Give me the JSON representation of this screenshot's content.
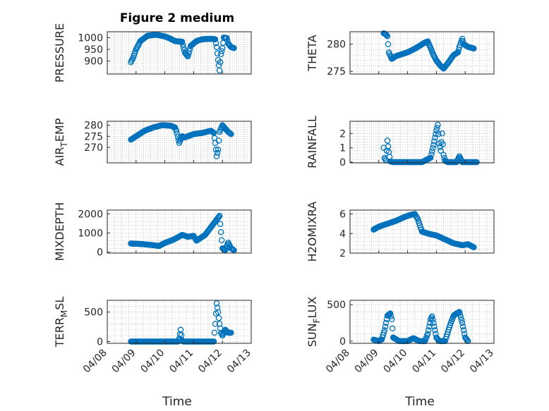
{
  "figure": {
    "title": "Figure 2 medium",
    "xlabel": "Time",
    "x_tick_labels": [
      "04/08",
      "04/09",
      "04/10",
      "04/11",
      "04/12",
      "04/13"
    ],
    "marker_color": "#0072bd",
    "background": "#ffffff"
  },
  "chart_data": [
    {
      "type": "scatter",
      "ylabel": "PRESSURE",
      "ylim": [
        845,
        1025
      ],
      "yticks": [
        900,
        950,
        1000
      ],
      "grid": true,
      "x_range_days": [
        0,
        5
      ],
      "anchors": [
        [
          0.82,
          895
        ],
        [
          0.9,
          915
        ],
        [
          1.0,
          950
        ],
        [
          1.15,
          985
        ],
        [
          1.4,
          1008
        ],
        [
          1.7,
          1012
        ],
        [
          2.0,
          1005
        ],
        [
          2.2,
          995
        ],
        [
          2.35,
          985
        ],
        [
          2.6,
          982
        ],
        [
          2.7,
          935
        ],
        [
          2.8,
          920
        ],
        [
          2.9,
          965
        ],
        [
          3.1,
          985
        ],
        [
          3.3,
          993
        ],
        [
          3.6,
          995
        ],
        [
          3.75,
          993
        ],
        [
          3.8,
          960
        ],
        [
          3.85,
          905
        ],
        [
          3.9,
          860
        ],
        [
          3.95,
          930
        ],
        [
          4.0,
          955
        ],
        [
          4.05,
          1000
        ],
        [
          4.15,
          998
        ],
        [
          4.2,
          975
        ],
        [
          4.3,
          960
        ],
        [
          4.4,
          955
        ]
      ]
    },
    {
      "type": "scatter",
      "ylabel": "THETA",
      "ylim": [
        274.5,
        282.3
      ],
      "yticks": [
        275,
        280
      ],
      "grid": true,
      "x_range_days": [
        0,
        5
      ],
      "anchors": [
        [
          1.17,
          282
        ],
        [
          1.25,
          281.8
        ],
        [
          1.3,
          281.5
        ],
        [
          1.35,
          278.5
        ],
        [
          1.45,
          277.3
        ],
        [
          1.6,
          277.8
        ],
        [
          2.0,
          278.5
        ],
        [
          2.3,
          279.3
        ],
        [
          2.6,
          280.3
        ],
        [
          2.7,
          280.5
        ],
        [
          2.8,
          279.3
        ],
        [
          2.9,
          278
        ],
        [
          3.0,
          277
        ],
        [
          3.15,
          276
        ],
        [
          3.25,
          275.5
        ],
        [
          3.4,
          276.5
        ],
        [
          3.6,
          278
        ],
        [
          3.75,
          278.5
        ],
        [
          3.8,
          279.5
        ],
        [
          3.9,
          281
        ],
        [
          3.95,
          280
        ],
        [
          4.1,
          279.5
        ],
        [
          4.3,
          279.2
        ]
      ]
    },
    {
      "type": "scatter",
      "ylabel": "AIR_TEMP",
      "ylim": [
        263,
        281.8
      ],
      "yticks": [
        270,
        275,
        280
      ],
      "grid": true,
      "x_range_days": [
        0,
        5
      ],
      "anchors": [
        [
          0.82,
          273.5
        ],
        [
          1.0,
          275
        ],
        [
          1.3,
          277.5
        ],
        [
          1.6,
          279
        ],
        [
          1.9,
          280
        ],
        [
          2.2,
          279.8
        ],
        [
          2.35,
          279
        ],
        [
          2.4,
          277.5
        ],
        [
          2.5,
          272
        ],
        [
          2.6,
          275
        ],
        [
          2.7,
          274.5
        ],
        [
          3.0,
          276
        ],
        [
          3.3,
          276.5
        ],
        [
          3.6,
          277.5
        ],
        [
          3.7,
          276.5
        ],
        [
          3.75,
          272
        ],
        [
          3.8,
          266
        ],
        [
          3.85,
          269
        ],
        [
          3.9,
          277
        ],
        [
          4.0,
          280
        ],
        [
          4.1,
          278.5
        ],
        [
          4.2,
          277
        ],
        [
          4.3,
          276
        ]
      ]
    },
    {
      "type": "scatter",
      "ylabel": "RAINFALL",
      "ylim": [
        -0.05,
        2.85
      ],
      "yticks": [
        0,
        1,
        2
      ],
      "grid": true,
      "x_range_days": [
        0,
        5
      ],
      "anchors": [
        [
          1.17,
          1
        ],
        [
          1.2,
          0.3
        ],
        [
          1.25,
          0.1
        ],
        [
          1.3,
          1.5
        ],
        [
          1.35,
          0.7
        ],
        [
          1.4,
          0.05
        ],
        [
          1.5,
          0
        ],
        [
          2.5,
          0
        ],
        [
          2.8,
          0.3
        ],
        [
          2.9,
          1.2
        ],
        [
          3.0,
          2.2
        ],
        [
          3.05,
          2.6
        ],
        [
          3.1,
          1.3
        ],
        [
          3.15,
          0.8
        ],
        [
          3.2,
          2
        ],
        [
          3.25,
          0.5
        ],
        [
          3.3,
          0.1
        ],
        [
          3.4,
          0
        ],
        [
          3.7,
          0
        ],
        [
          3.8,
          0.4
        ],
        [
          3.9,
          0
        ],
        [
          4.4,
          0
        ]
      ]
    },
    {
      "type": "scatter",
      "ylabel": "MIXDEPTH",
      "ylim": [
        -50,
        2200
      ],
      "yticks": [
        0,
        1000,
        2000
      ],
      "grid": true,
      "x_range_days": [
        0,
        5
      ],
      "anchors": [
        [
          0.82,
          450
        ],
        [
          1.2,
          420
        ],
        [
          1.5,
          380
        ],
        [
          1.8,
          320
        ],
        [
          2.0,
          480
        ],
        [
          2.3,
          650
        ],
        [
          2.6,
          900
        ],
        [
          2.8,
          800
        ],
        [
          3.0,
          850
        ],
        [
          3.1,
          600
        ],
        [
          3.4,
          900
        ],
        [
          3.6,
          1300
        ],
        [
          3.8,
          1700
        ],
        [
          3.9,
          1900
        ],
        [
          4.0,
          200
        ],
        [
          4.1,
          100
        ],
        [
          4.2,
          500
        ],
        [
          4.3,
          200
        ],
        [
          4.4,
          100
        ]
      ]
    },
    {
      "type": "scatter",
      "ylabel": "H2OMIXRA",
      "ylim": [
        2,
        6.4
      ],
      "yticks": [
        2,
        4,
        6
      ],
      "grid": true,
      "x_range_days": [
        0,
        5
      ],
      "anchors": [
        [
          0.82,
          4.4
        ],
        [
          1.0,
          4.7
        ],
        [
          1.3,
          5.0
        ],
        [
          1.6,
          5.3
        ],
        [
          1.9,
          5.7
        ],
        [
          2.1,
          5.9
        ],
        [
          2.25,
          6.0
        ],
        [
          2.35,
          5.5
        ],
        [
          2.5,
          4.2
        ],
        [
          2.7,
          4.0
        ],
        [
          3.0,
          3.8
        ],
        [
          3.3,
          3.4
        ],
        [
          3.6,
          3.0
        ],
        [
          3.9,
          2.8
        ],
        [
          4.1,
          2.9
        ],
        [
          4.3,
          2.6
        ]
      ]
    },
    {
      "type": "scatter",
      "ylabel": "TERR_MSL",
      "ylim": [
        -30,
        700
      ],
      "yticks": [
        0,
        500
      ],
      "grid": true,
      "x_range_days": [
        0,
        5
      ],
      "anchors": [
        [
          0.82,
          0
        ],
        [
          2.45,
          0
        ],
        [
          2.5,
          50
        ],
        [
          2.55,
          200
        ],
        [
          2.6,
          20
        ],
        [
          2.65,
          0
        ],
        [
          3.6,
          0
        ],
        [
          3.7,
          0
        ],
        [
          3.75,
          300
        ],
        [
          3.8,
          650
        ],
        [
          3.85,
          500
        ],
        [
          3.9,
          300
        ],
        [
          3.95,
          150
        ],
        [
          4.0,
          100
        ],
        [
          4.1,
          200
        ],
        [
          4.2,
          150
        ],
        [
          4.3,
          150
        ]
      ]
    },
    {
      "type": "scatter",
      "ylabel": "SUN_FLUX",
      "ylim": [
        -30,
        560
      ],
      "yticks": [
        0,
        500
      ],
      "grid": true,
      "x_range_days": [
        0,
        5
      ],
      "anchors": [
        [
          0.82,
          20
        ],
        [
          1.0,
          0
        ],
        [
          1.1,
          20
        ],
        [
          1.2,
          150
        ],
        [
          1.3,
          350
        ],
        [
          1.4,
          380
        ],
        [
          1.45,
          300
        ],
        [
          1.5,
          50
        ],
        [
          1.7,
          0
        ],
        [
          2.0,
          0
        ],
        [
          2.2,
          40
        ],
        [
          2.4,
          0
        ],
        [
          2.6,
          0
        ],
        [
          2.7,
          100
        ],
        [
          2.8,
          300
        ],
        [
          2.85,
          340
        ],
        [
          2.9,
          250
        ],
        [
          3.0,
          50
        ],
        [
          3.1,
          0
        ],
        [
          3.3,
          0
        ],
        [
          3.5,
          250
        ],
        [
          3.6,
          350
        ],
        [
          3.7,
          380
        ],
        [
          3.8,
          400
        ],
        [
          3.9,
          250
        ],
        [
          4.0,
          50
        ],
        [
          4.1,
          0
        ]
      ]
    }
  ]
}
